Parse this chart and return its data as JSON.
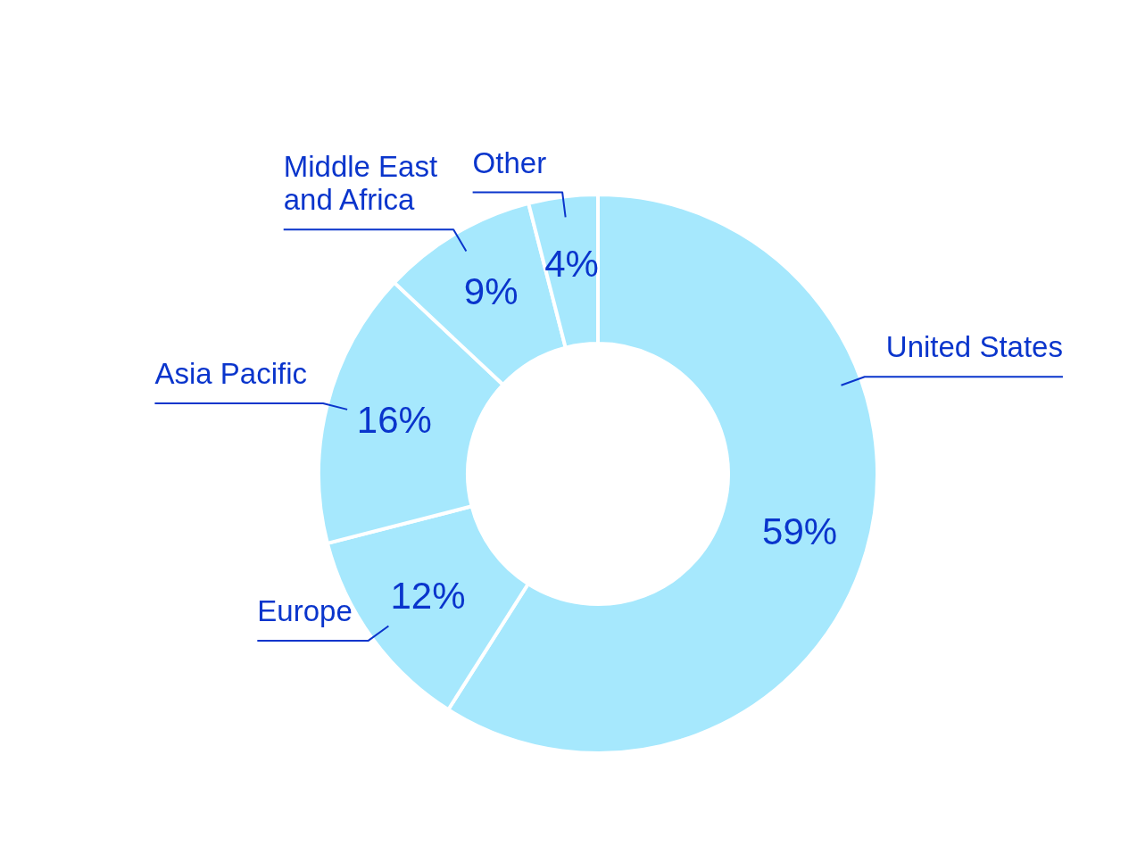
{
  "chart_data": {
    "type": "donut",
    "categories": [
      "United States",
      "Europe",
      "Asia Pacific",
      "Middle East and Africa",
      "Other"
    ],
    "values": [
      59,
      12,
      16,
      9,
      4
    ],
    "colors": [
      "#a6e8fd",
      "#a6e8fd",
      "#a6e8fd",
      "#a6e8fd",
      "#a6e8fd"
    ],
    "value_labels": [
      "59%",
      "12%",
      "16%",
      "9%",
      "4%"
    ]
  }
}
